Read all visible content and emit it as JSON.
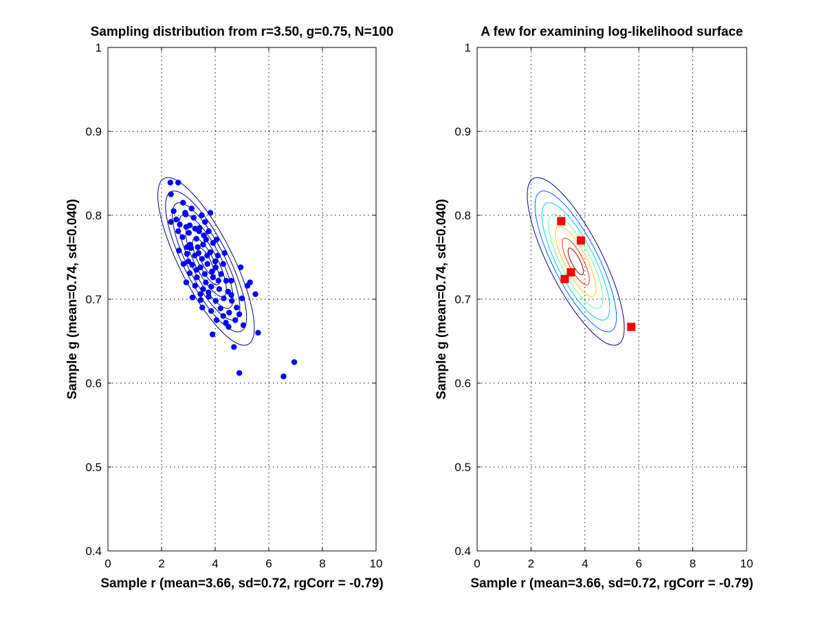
{
  "chart_data": [
    {
      "type": "scatter",
      "title": "Sampling distribution from r=3.50, g=0.75, N=100",
      "xlabel": "Sample r (mean=3.66, sd=0.72, rgCorr = -0.79)",
      "ylabel": "Sample g (mean=0.74, sd=0.040)",
      "xlim": [
        0,
        10
      ],
      "ylim": [
        0.4,
        1
      ],
      "x_ticks": [
        "0",
        "2",
        "4",
        "6",
        "8",
        "10"
      ],
      "y_ticks": [
        "0.4",
        "0.5",
        "0.6",
        "0.7",
        "0.8",
        "0.9",
        "1"
      ],
      "grid": true,
      "marker_color": "#0000ff",
      "contour_color": "#00007f",
      "points": [
        [
          2.33,
          0.839
        ],
        [
          2.62,
          0.839
        ],
        [
          2.35,
          0.825
        ],
        [
          2.45,
          0.805
        ],
        [
          2.8,
          0.815
        ],
        [
          2.9,
          0.801
        ],
        [
          2.55,
          0.795
        ],
        [
          2.68,
          0.789
        ],
        [
          2.35,
          0.792
        ],
        [
          2.62,
          0.781
        ],
        [
          2.92,
          0.786
        ],
        [
          3.2,
          0.797
        ],
        [
          3.42,
          0.785
        ],
        [
          3.02,
          0.779
        ],
        [
          3.3,
          0.772
        ],
        [
          3.82,
          0.803
        ],
        [
          3.62,
          0.792
        ],
        [
          3.76,
          0.781
        ],
        [
          2.78,
          0.774
        ],
        [
          3.06,
          0.765
        ],
        [
          3.35,
          0.762
        ],
        [
          3.66,
          0.771
        ],
        [
          3.92,
          0.767
        ],
        [
          4.05,
          0.771
        ],
        [
          2.65,
          0.758
        ],
        [
          2.95,
          0.754
        ],
        [
          3.24,
          0.752
        ],
        [
          3.51,
          0.748
        ],
        [
          3.82,
          0.756
        ],
        [
          4.1,
          0.752
        ],
        [
          2.82,
          0.742
        ],
        [
          3.14,
          0.741
        ],
        [
          3.45,
          0.738
        ],
        [
          3.71,
          0.742
        ],
        [
          4.02,
          0.738
        ],
        [
          4.3,
          0.742
        ],
        [
          3.05,
          0.731
        ],
        [
          3.32,
          0.726
        ],
        [
          3.61,
          0.73
        ],
        [
          3.92,
          0.726
        ],
        [
          4.22,
          0.73
        ],
        [
          4.41,
          0.722
        ],
        [
          2.92,
          0.72
        ],
        [
          3.25,
          0.716
        ],
        [
          3.55,
          0.712
        ],
        [
          3.85,
          0.715
        ],
        [
          4.15,
          0.712
        ],
        [
          4.48,
          0.709
        ],
        [
          3.15,
          0.702
        ],
        [
          3.46,
          0.699
        ],
        [
          3.76,
          0.703
        ],
        [
          4.02,
          0.698
        ],
        [
          4.32,
          0.701
        ],
        [
          4.62,
          0.698
        ],
        [
          3.52,
          0.69
        ],
        [
          3.85,
          0.686
        ],
        [
          4.2,
          0.689
        ],
        [
          4.52,
          0.684
        ],
        [
          4.05,
          0.675
        ],
        [
          4.4,
          0.672
        ],
        [
          4.75,
          0.675
        ],
        [
          5.05,
          0.669
        ],
        [
          4.5,
          0.667
        ],
        [
          5.0,
          0.701
        ],
        [
          5.2,
          0.716
        ],
        [
          5.5,
          0.706
        ],
        [
          4.95,
          0.738
        ],
        [
          4.6,
          0.705
        ],
        [
          4.9,
          0.682
        ],
        [
          5.6,
          0.66
        ],
        [
          3.9,
          0.658
        ],
        [
          4.7,
          0.643
        ],
        [
          4.9,
          0.612
        ],
        [
          6.55,
          0.608
        ],
        [
          6.95,
          0.625
        ],
        [
          3.1,
          0.761
        ],
        [
          3.4,
          0.781
        ],
        [
          3.55,
          0.765
        ],
        [
          3.25,
          0.784
        ],
        [
          2.95,
          0.762
        ],
        [
          3.7,
          0.752
        ],
        [
          3.38,
          0.755
        ],
        [
          3.88,
          0.733
        ],
        [
          4.12,
          0.722
        ],
        [
          3.65,
          0.72
        ],
        [
          3.3,
          0.735
        ],
        [
          2.88,
          0.803
        ],
        [
          3.12,
          0.808
        ],
        [
          3.5,
          0.8
        ],
        [
          3.0,
          0.745
        ],
        [
          4.35,
          0.755
        ],
        [
          4.6,
          0.722
        ],
        [
          3.75,
          0.708
        ],
        [
          5.3,
          0.72
        ],
        [
          4.8,
          0.69
        ],
        [
          4.3,
          0.68
        ],
        [
          3.05,
          0.788
        ],
        [
          3.58,
          0.776
        ],
        [
          3.45,
          0.706
        ],
        [
          4.0,
          0.745
        ]
      ]
    },
    {
      "type": "scatter",
      "title": "A few for examining log-likelihood surface",
      "xlabel": "Sample r (mean=3.66, sd=0.72, rgCorr = -0.79)",
      "ylabel": "Sample g (mean=0.74, sd=0.040)",
      "xlim": [
        0,
        10
      ],
      "ylim": [
        0.4,
        1
      ],
      "x_ticks": [
        "0",
        "2",
        "4",
        "6",
        "8",
        "10"
      ],
      "y_ticks": [
        "0.4",
        "0.5",
        "0.6",
        "0.7",
        "0.8",
        "0.9",
        "1"
      ],
      "grid": true,
      "marker_color": "#ff0000",
      "contour_colors": [
        "#00007f",
        "#0066ff",
        "#00ccff",
        "#66ff99",
        "#ffcc00",
        "#ff3300",
        "#990000"
      ],
      "points": [
        [
          3.12,
          0.793
        ],
        [
          3.85,
          0.77
        ],
        [
          3.25,
          0.724
        ],
        [
          3.48,
          0.732
        ],
        [
          5.72,
          0.667
        ]
      ]
    }
  ]
}
